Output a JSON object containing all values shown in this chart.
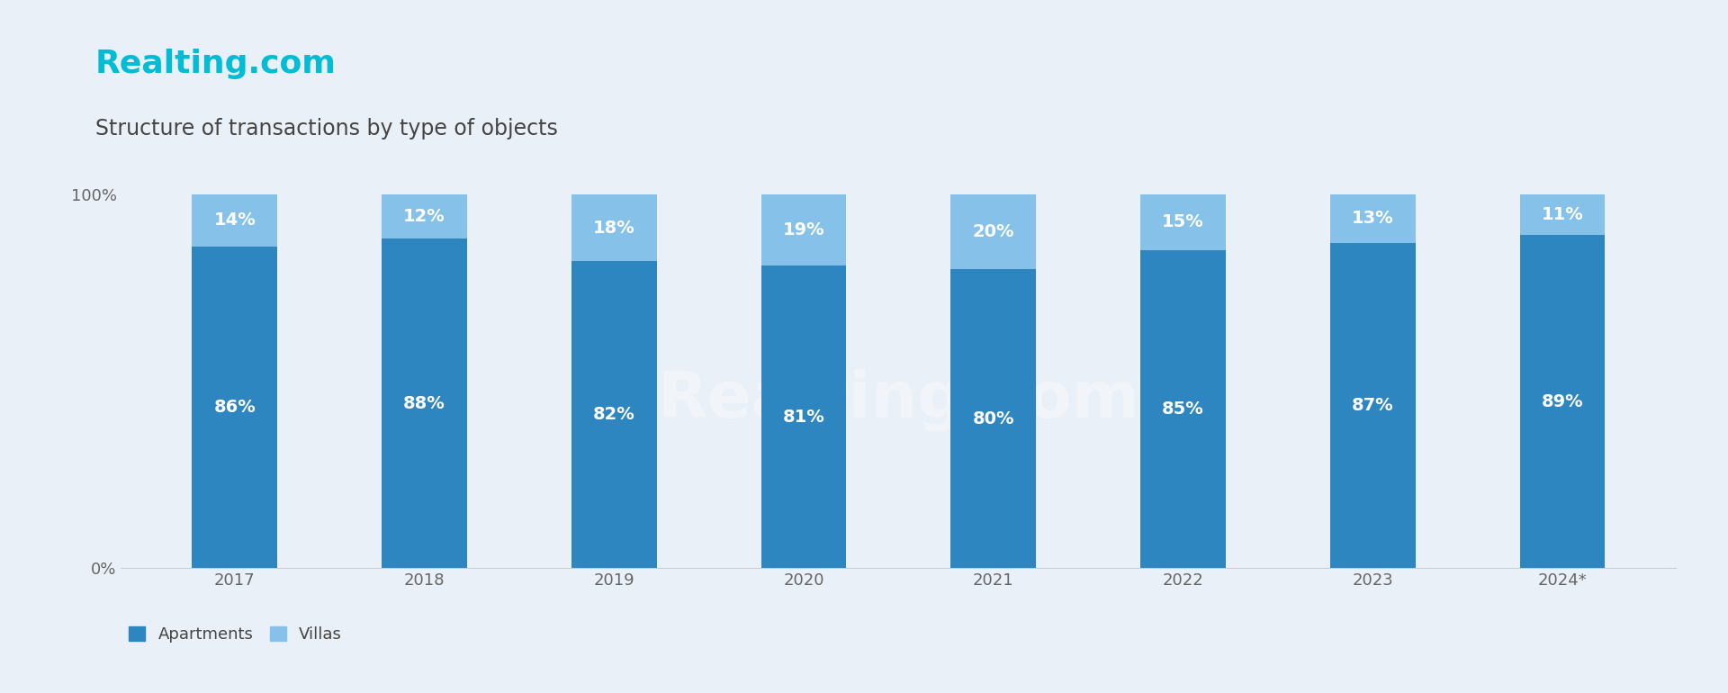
{
  "title_brand": "Realting.com",
  "title_sub": "Structure of transactions by type of objects",
  "categories": [
    "2017",
    "2018",
    "2019",
    "2020",
    "2021",
    "2022",
    "2023",
    "2024*"
  ],
  "apartments": [
    86,
    88,
    82,
    81,
    80,
    85,
    87,
    89
  ],
  "villas": [
    14,
    12,
    18,
    19,
    20,
    15,
    13,
    11
  ],
  "color_apartments": "#2E86C1",
  "color_villas": "#85C1E9",
  "color_bg": "#EAF0F8",
  "color_brand": "#00BCD4",
  "color_subtitle": "#444444",
  "color_tick_label": "#666666",
  "color_bar_label": "#ffffff",
  "color_axis_line": "#cccccc",
  "bar_width": 0.45,
  "ylim": [
    0,
    100
  ],
  "yticks": [
    0,
    100
  ],
  "ytick_labels": [
    "0%",
    "100%"
  ],
  "legend_labels": [
    "Apartments",
    "Villas"
  ],
  "watermark_text": "Realting.com",
  "brand_fontsize": 26,
  "subtitle_fontsize": 17,
  "bar_label_fontsize": 14,
  "tick_label_fontsize": 13,
  "legend_fontsize": 13
}
